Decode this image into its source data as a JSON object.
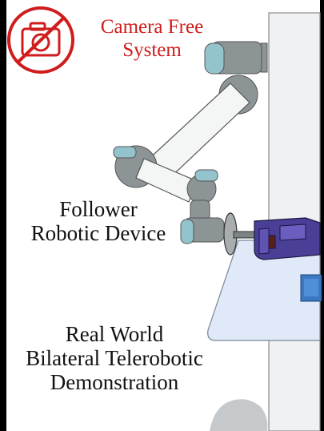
{
  "badge": {
    "line1": "Camera Free",
    "line2": "System",
    "color": "#d01c1c",
    "icon": "no-camera-icon"
  },
  "follower": {
    "line1": "Follower",
    "line2": "Robotic Device"
  },
  "demo": {
    "line1": "Real World",
    "line2": "Bilateral Telerobotic",
    "line3": "Demonstration"
  },
  "colors": {
    "arm_gray": "#8c9496",
    "arm_white": "#f4f6f6",
    "joint_blue": "#93c3cc",
    "table_blue": "#dfe9f8",
    "tool_purple": "#4a3f97",
    "cube_blue": "#3b78c4"
  }
}
